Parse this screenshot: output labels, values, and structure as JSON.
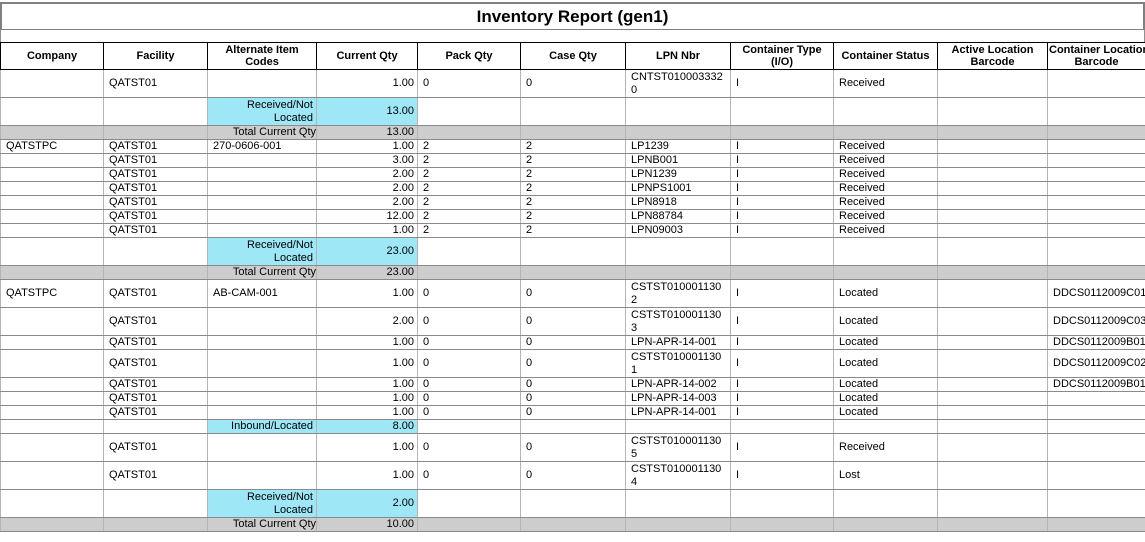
{
  "title": "Inventory Report (gen1)",
  "colors": {
    "summary_highlight": "#9EE7F7",
    "total_row_background": "#CDCDCD",
    "grid_line": "#8a8a8a",
    "header_border": "#000000"
  },
  "table": {
    "columns": [
      {
        "key": "company",
        "label": "Company"
      },
      {
        "key": "facility",
        "label": "Facility"
      },
      {
        "key": "alt",
        "label": "Alternate Item\nCodes"
      },
      {
        "key": "qty",
        "label": "Current Qty"
      },
      {
        "key": "pack",
        "label": "Pack Qty"
      },
      {
        "key": "case",
        "label": "Case Qty"
      },
      {
        "key": "lpn",
        "label": "LPN Nbr"
      },
      {
        "key": "ctype",
        "label": "Container Type\n(I/O)"
      },
      {
        "key": "cstatus",
        "label": "Container Status"
      },
      {
        "key": "active_loc",
        "label": "Active Location\nBarcode"
      },
      {
        "key": "cont_loc",
        "label": "Container Location\nBarcode"
      }
    ],
    "rows": [
      {
        "kind": "data",
        "tall": true,
        "cells": {
          "facility": "QATST01",
          "qty": "1.00",
          "pack": "0",
          "case": "0",
          "lpn": "CNTST0100033320",
          "ctype": "I",
          "cstatus": "Received"
        }
      },
      {
        "kind": "summary",
        "tall": true,
        "label": "Received/Not Located",
        "value": "13.00"
      },
      {
        "kind": "total",
        "label": "Total Current Qty",
        "value": "13.00"
      },
      {
        "kind": "data",
        "cells": {
          "company": "QATSTPC",
          "facility": "QATST01",
          "alt": "270-0606-001",
          "qty": "1.00",
          "pack": "2",
          "case": "2",
          "lpn": "LP1239",
          "ctype": "I",
          "cstatus": "Received"
        }
      },
      {
        "kind": "data",
        "cells": {
          "facility": "QATST01",
          "qty": "3.00",
          "pack": "2",
          "case": "2",
          "lpn": "LPNB001",
          "ctype": "I",
          "cstatus": "Received"
        }
      },
      {
        "kind": "data",
        "cells": {
          "facility": "QATST01",
          "qty": "2.00",
          "pack": "2",
          "case": "2",
          "lpn": "LPN1239",
          "ctype": "I",
          "cstatus": "Received"
        }
      },
      {
        "kind": "data",
        "cells": {
          "facility": "QATST01",
          "qty": "2.00",
          "pack": "2",
          "case": "2",
          "lpn": "LPNPS1001",
          "ctype": "I",
          "cstatus": "Received"
        }
      },
      {
        "kind": "data",
        "cells": {
          "facility": "QATST01",
          "qty": "2.00",
          "pack": "2",
          "case": "2",
          "lpn": "LPN8918",
          "ctype": "I",
          "cstatus": "Received"
        }
      },
      {
        "kind": "data",
        "cells": {
          "facility": "QATST01",
          "qty": "12.00",
          "pack": "2",
          "case": "2",
          "lpn": "LPN88784",
          "ctype": "I",
          "cstatus": "Received"
        }
      },
      {
        "kind": "data",
        "cells": {
          "facility": "QATST01",
          "qty": "1.00",
          "pack": "2",
          "case": "2",
          "lpn": "LPN09003",
          "ctype": "I",
          "cstatus": "Received"
        }
      },
      {
        "kind": "summary",
        "tall": true,
        "label": "Received/Not Located",
        "value": "23.00"
      },
      {
        "kind": "total",
        "label": "Total Current Qty",
        "value": "23.00"
      },
      {
        "kind": "data",
        "tall": true,
        "cells": {
          "company": "QATSTPC",
          "facility": "QATST01",
          "alt": "AB-CAM-001",
          "qty": "1.00",
          "pack": "0",
          "case": "0",
          "lpn": "CSTST0100011302",
          "ctype": "I",
          "cstatus": "Located",
          "cont_loc": "DDCS0112009C01"
        }
      },
      {
        "kind": "data",
        "tall": true,
        "cells": {
          "facility": "QATST01",
          "qty": "2.00",
          "pack": "0",
          "case": "0",
          "lpn": "CSTST0100011303",
          "ctype": "I",
          "cstatus": "Located",
          "cont_loc": "DDCS0112009C03"
        }
      },
      {
        "kind": "data",
        "cells": {
          "facility": "QATST01",
          "qty": "1.00",
          "pack": "0",
          "case": "0",
          "lpn": "LPN-APR-14-001",
          "ctype": "I",
          "cstatus": "Located",
          "cont_loc": "DDCS0112009B01"
        }
      },
      {
        "kind": "data",
        "tall": true,
        "cells": {
          "facility": "QATST01",
          "qty": "1.00",
          "pack": "0",
          "case": "0",
          "lpn": "CSTST0100011301",
          "ctype": "I",
          "cstatus": "Located",
          "cont_loc": "DDCS0112009C02"
        }
      },
      {
        "kind": "data",
        "cells": {
          "facility": "QATST01",
          "qty": "1.00",
          "pack": "0",
          "case": "0",
          "lpn": "LPN-APR-14-002",
          "ctype": "I",
          "cstatus": "Located",
          "cont_loc": "DDCS0112009B01"
        }
      },
      {
        "kind": "data",
        "cells": {
          "facility": "QATST01",
          "qty": "1.00",
          "pack": "0",
          "case": "0",
          "lpn": "LPN-APR-14-003",
          "ctype": "I",
          "cstatus": "Located"
        }
      },
      {
        "kind": "data",
        "cells": {
          "facility": "QATST01",
          "qty": "1.00",
          "pack": "0",
          "case": "0",
          "lpn": "LPN-APR-14-001",
          "ctype": "I",
          "cstatus": "Located"
        }
      },
      {
        "kind": "summary",
        "label": "Inbound/Located",
        "value": "8.00"
      },
      {
        "kind": "data",
        "tall": true,
        "cells": {
          "facility": "QATST01",
          "qty": "1.00",
          "pack": "0",
          "case": "0",
          "lpn": "CSTST0100011305",
          "ctype": "I",
          "cstatus": "Received"
        }
      },
      {
        "kind": "data",
        "tall": true,
        "cells": {
          "facility": "QATST01",
          "qty": "1.00",
          "pack": "0",
          "case": "0",
          "lpn": "CSTST0100011304",
          "ctype": "I",
          "cstatus": "Lost"
        }
      },
      {
        "kind": "summary",
        "tall": true,
        "label": "Received/Not Located",
        "value": "2.00"
      },
      {
        "kind": "total",
        "label": "Total Current Qty",
        "value": "10.00"
      }
    ]
  }
}
